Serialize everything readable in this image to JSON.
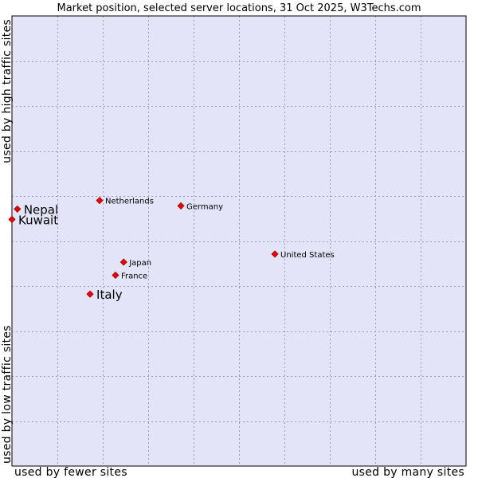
{
  "chart_data": {
    "type": "scatter",
    "title": "Market position, selected server locations, 31 Oct 2025, W3Techs.com",
    "xlabel_left": "used by fewer sites",
    "xlabel_right": "used by many sites",
    "ylabel_bottom": "used by low traffic sites",
    "ylabel_top": "used by high traffic sites",
    "xlim": [
      0,
      100
    ],
    "ylim": [
      0,
      100
    ],
    "grid": true,
    "colors": {
      "plot_bg": "#e4e4f8",
      "grid": "#9a9ab8",
      "point": "#ee0000",
      "point_stroke": "#990000"
    },
    "points": [
      {
        "name": "Netherlands",
        "x": 19.3,
        "y": 59.0,
        "emphasis": false
      },
      {
        "name": "Germany",
        "x": 37.2,
        "y": 57.8,
        "emphasis": false
      },
      {
        "name": "United States",
        "x": 57.9,
        "y": 47.1,
        "emphasis": false
      },
      {
        "name": "Japan",
        "x": 24.6,
        "y": 45.3,
        "emphasis": false
      },
      {
        "name": "France",
        "x": 22.8,
        "y": 42.4,
        "emphasis": false
      },
      {
        "name": "Nepal",
        "x": 1.2,
        "y": 57.1,
        "emphasis": true
      },
      {
        "name": "Kuwait",
        "x": 0.0,
        "y": 54.8,
        "emphasis": true
      },
      {
        "name": "Italy",
        "x": 17.2,
        "y": 38.2,
        "emphasis": true
      }
    ]
  }
}
